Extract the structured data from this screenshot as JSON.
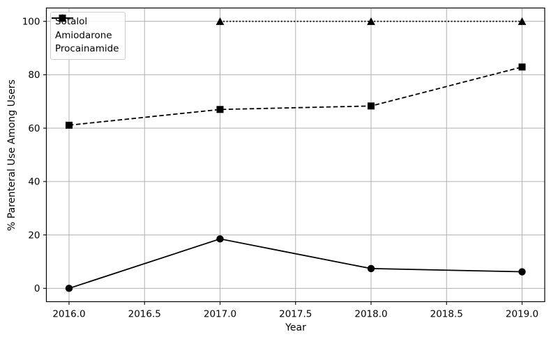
{
  "chart_data": {
    "type": "line",
    "title": "",
    "xlabel": "Year",
    "ylabel": "% Parenteral Use Among Users",
    "x": [
      2016,
      2017,
      2018,
      2019
    ],
    "series": [
      {
        "name": "Sotalol",
        "line_style": "solid",
        "marker": "circle",
        "values": [
          0.0,
          18.5,
          7.4,
          6.2
        ]
      },
      {
        "name": "Amiodarone",
        "line_style": "dashed",
        "marker": "square",
        "values": [
          61.1,
          67.0,
          68.3,
          82.9
        ]
      },
      {
        "name": "Procainamide",
        "line_style": "dotted",
        "marker": "triangle",
        "values": [
          null,
          100.0,
          100.0,
          100.0
        ]
      }
    ],
    "xticks": [
      2016.0,
      2016.5,
      2017.0,
      2017.5,
      2018.0,
      2018.5,
      2019.0
    ],
    "xtick_labels": [
      "2016.0",
      "2016.5",
      "2017.0",
      "2017.5",
      "2018.0",
      "2018.5",
      "2019.0"
    ],
    "yticks": [
      0,
      20,
      40,
      60,
      80,
      100
    ],
    "ytick_labels": [
      "0",
      "20",
      "40",
      "60",
      "80",
      "100"
    ],
    "xlim": [
      2015.85,
      2019.15
    ],
    "ylim": [
      -5,
      105
    ],
    "grid": true,
    "legend_position": "upper-left",
    "colors": {
      "line": "#000000",
      "grid": "#b0b0b0",
      "text": "#000000",
      "background": "#ffffff",
      "legend_border": "#cccccc"
    }
  }
}
